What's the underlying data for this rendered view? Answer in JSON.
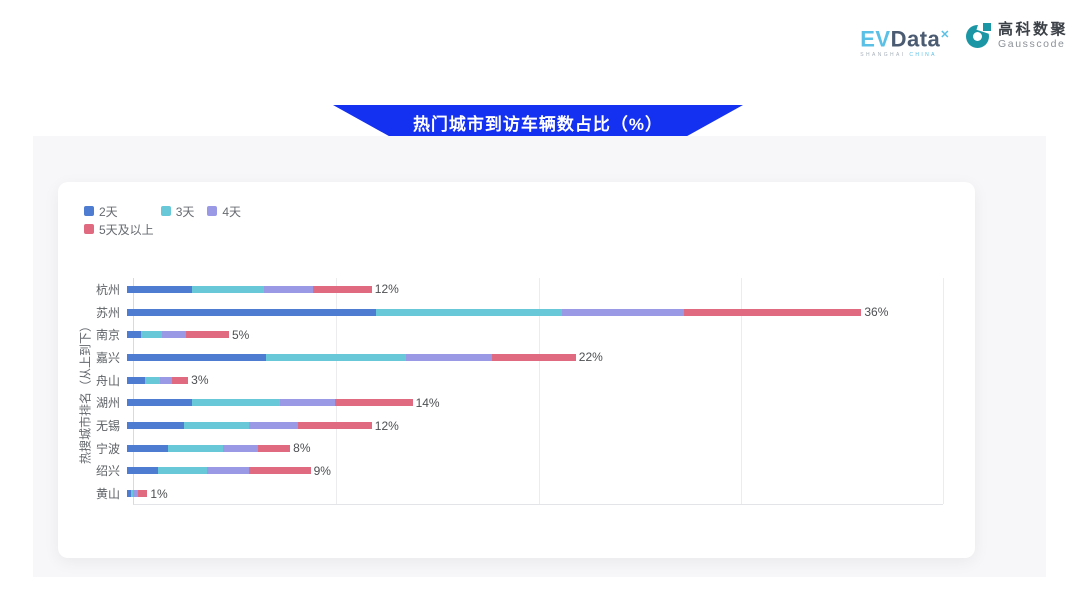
{
  "header": {
    "evdata_logo": {
      "ev": "EV",
      "data": "Data",
      "sup": "✕",
      "sub_left": "SHANGHAI",
      "sub_right": "CHINA",
      "ev_color": "#5ac0e6",
      "data_color": "#4b5b71"
    },
    "gausscode_logo": {
      "cn": "高科数聚",
      "en": "Gausscode",
      "icon_color": "#1a96a5"
    }
  },
  "banner": {
    "title": "热门城市到访车辆数占比（%）",
    "color": "#1430f0"
  },
  "chart_data": {
    "type": "bar",
    "orientation": "horizontal",
    "stacked": true,
    "title": "热门城市到访车辆数占比（%）",
    "xlabel": "",
    "ylabel": "热搜城市排名（从上到下）",
    "xlim": [
      0,
      40
    ],
    "gridline_values": [
      10,
      20,
      30,
      40
    ],
    "grid": true,
    "legend_position": "top-left",
    "legend_rows": [
      [
        "2天",
        "3天",
        "4天"
      ],
      [
        "5天及以上"
      ]
    ],
    "categories": [
      "杭州",
      "苏州",
      "南京",
      "嘉兴",
      "舟山",
      "湖州",
      "无锡",
      "宁波",
      "绍兴",
      "黄山"
    ],
    "totals": [
      "12%",
      "36%",
      "5%",
      "22%",
      "3%",
      "14%",
      "12%",
      "8%",
      "9%",
      "1%"
    ],
    "total_values": [
      12,
      36,
      5,
      22,
      3,
      14,
      12,
      8,
      9,
      1
    ],
    "series": [
      {
        "name": "2天",
        "color": "#4e7cd0",
        "values": [
          3.2,
          12.2,
          0.7,
          6.8,
          0.9,
          3.2,
          2.8,
          2.0,
          1.5,
          0.2
        ]
      },
      {
        "name": "3天",
        "color": "#68c8d8",
        "values": [
          3.5,
          9.1,
          1.0,
          6.9,
          0.7,
          4.3,
          3.2,
          2.7,
          2.4,
          0.1
        ]
      },
      {
        "name": "4天",
        "color": "#9a99e6",
        "values": [
          2.4,
          6.0,
          1.2,
          4.2,
          0.6,
          2.7,
          2.4,
          1.7,
          2.1,
          0.25
        ]
      },
      {
        "name": "5天及以上",
        "color": "#e06a80",
        "values": [
          2.9,
          8.7,
          2.1,
          4.1,
          0.8,
          3.8,
          3.6,
          1.6,
          3.0,
          0.45
        ]
      }
    ]
  }
}
